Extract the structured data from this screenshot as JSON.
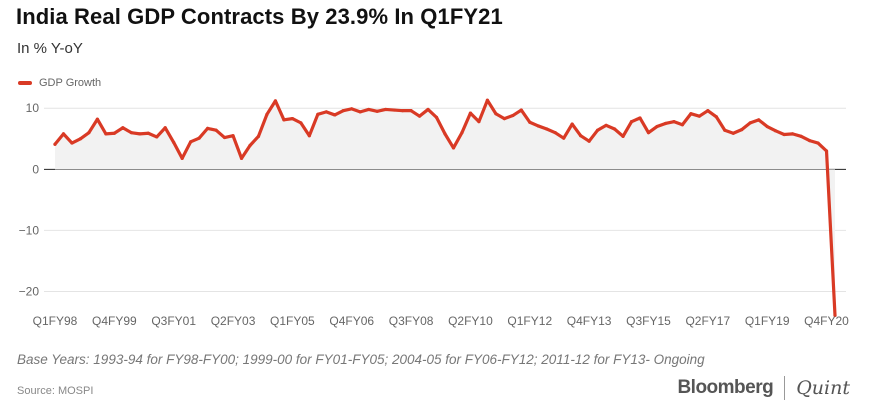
{
  "title": "India Real GDP Contracts By 23.9% In Q1FY21",
  "subtitle": "In % Y-oY",
  "footnote": "Base Years: 1993-94 for FY98-FY00; 1999-00 for FY01-FY05; 2004-05 for FY06-FY12; 2011-12 for FY13- Ongoing",
  "source": "Source: MOSPI",
  "brand": {
    "name_a": "Bloomberg",
    "name_b": "Quint"
  },
  "colors": {
    "line": "#d93a25",
    "area": "#f2f2f2",
    "grid": "#e4e4e4",
    "zero": "#222222"
  },
  "chart_data": {
    "type": "line",
    "x_tick_labels": [
      "Q1FY98",
      "Q4FY99",
      "Q3FY01",
      "Q2FY03",
      "Q1FY05",
      "Q4FY06",
      "Q3FY08",
      "Q2FY10",
      "Q1FY12",
      "Q4FY13",
      "Q3FY15",
      "Q2FY17",
      "Q1FY19",
      "Q4FY20"
    ],
    "x_tick_step": 7,
    "y_ticks": [
      10,
      0,
      -10,
      -20
    ],
    "ylim": [
      -24.5,
      12
    ],
    "grid": true,
    "legend_position": "top-left",
    "series": [
      {
        "name": "GDP Growth",
        "values": [
          4.1,
          5.8,
          4.3,
          5.0,
          6.0,
          8.2,
          5.8,
          5.9,
          6.8,
          6.0,
          5.8,
          5.9,
          5.3,
          6.8,
          4.4,
          1.8,
          4.5,
          5.1,
          6.7,
          6.4,
          5.2,
          5.5,
          1.8,
          3.9,
          5.4,
          9.0,
          11.2,
          8.1,
          8.3,
          7.6,
          5.5,
          9.0,
          9.4,
          8.9,
          9.6,
          9.9,
          9.4,
          9.8,
          9.5,
          9.8,
          9.7,
          9.6,
          9.6,
          8.7,
          9.8,
          8.5,
          5.8,
          3.5,
          6.0,
          9.2,
          7.8,
          11.3,
          9.1,
          8.3,
          8.8,
          9.7,
          7.7,
          7.1,
          6.6,
          6.0,
          5.1,
          7.4,
          5.5,
          4.6,
          6.4,
          7.2,
          6.6,
          5.4,
          7.8,
          8.4,
          6.0,
          7.0,
          7.5,
          7.8,
          7.3,
          9.1,
          8.7,
          9.6,
          8.6,
          6.4,
          5.9,
          6.5,
          7.6,
          8.1,
          7.0,
          6.3,
          5.7,
          5.8,
          5.4,
          4.7,
          4.3,
          3.0,
          -23.9
        ]
      }
    ]
  }
}
